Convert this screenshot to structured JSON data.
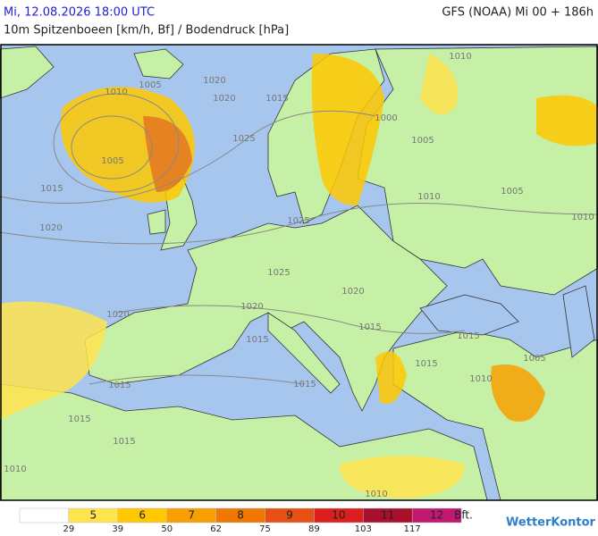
{
  "header": {
    "datetime": "Mi, 12.08.2026 18:00 UTC",
    "model": "GFS (NOAA) Mi 00 + 186h",
    "subtitle": "10m Spitzenboeen [km/h, Bf] / Bodendruck [hPa]"
  },
  "isobar_labels": [
    1010,
    1010,
    1005,
    1020,
    1020,
    1015,
    1000,
    1025,
    1005,
    1005,
    1015,
    1010,
    1005,
    1020,
    1010,
    1025,
    1025,
    1020,
    1020,
    1015,
    1020,
    1015,
    1015,
    1005,
    1015,
    1015,
    1010,
    1015,
    1015,
    1015,
    1010,
    1010
  ],
  "legend": {
    "classes": [
      5,
      6,
      7,
      8,
      9,
      10,
      11,
      12
    ],
    "colors": [
      "#ffffff",
      "#ffe44d",
      "#ffc800",
      "#f7a000",
      "#f07800",
      "#e65014",
      "#dc1e1e",
      "#a8102c",
      "#c21870"
    ],
    "unit": "Bft.",
    "kmh": [
      29,
      39,
      50,
      62,
      75,
      89,
      103,
      117
    ]
  },
  "brand": "WetterKontor"
}
